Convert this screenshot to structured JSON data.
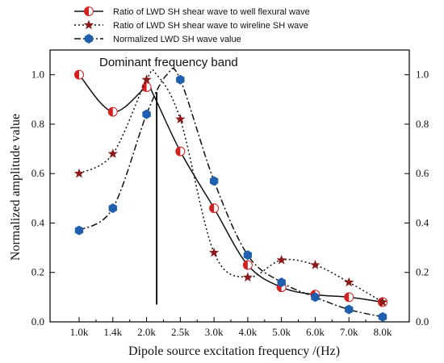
{
  "chart_data": {
    "type": "line",
    "categories": [
      "1.0k",
      "1.4k",
      "2.0k",
      "2.5k",
      "3.0k",
      "4.0k",
      "5.0k",
      "6.0k",
      "7.0k",
      "8.0k"
    ],
    "xlabel": "Dipole source excitation frequency /(Hz)",
    "ylabel": "Normalized amplitude value",
    "ylim": [
      0,
      1.1
    ],
    "y_ticks": [
      "0.0",
      "0.2",
      "0.4",
      "0.6",
      "0.8",
      "1.0"
    ],
    "y_ticks_right": [
      "0.0",
      "0.2",
      "0.4",
      "0.6",
      "0.8",
      "1.0"
    ],
    "legend_position": "top-center",
    "grid": false,
    "annotation": {
      "text": "Dominant frequency band",
      "x_index": 2.3,
      "y_bottom": 0.07,
      "y_top": 0.93
    },
    "series": [
      {
        "name": "Ratio of LWD SH shear wave to well flexural wave",
        "marker": "half-circle",
        "line_style": "solid",
        "color": "#d42020",
        "values": [
          1.0,
          0.85,
          0.95,
          0.69,
          0.46,
          0.23,
          0.14,
          0.11,
          0.1,
          0.08
        ],
        "smooth_peak": {
          "x_index": 2.2,
          "value": 0.92
        }
      },
      {
        "name": "Ratio of LWD SH shear wave to wireline SH wave",
        "marker": "star",
        "line_style": "dotted",
        "color": "#8b1a1a",
        "values": [
          0.6,
          0.68,
          0.98,
          0.82,
          0.28,
          0.18,
          0.25,
          0.23,
          0.16,
          0.08
        ],
        "smooth_peak": {
          "x_index": 2.3,
          "value": 1.0
        }
      },
      {
        "name": "Normalized LWD SH wave value",
        "marker": "hexagon",
        "line_style": "dashdot",
        "color": "#1f5fae",
        "values": [
          0.37,
          0.46,
          0.84,
          0.98,
          0.57,
          0.27,
          0.16,
          0.1,
          0.05,
          0.02
        ],
        "smooth_peak": {
          "x_index": 2.6,
          "value": 1.0
        }
      }
    ]
  }
}
